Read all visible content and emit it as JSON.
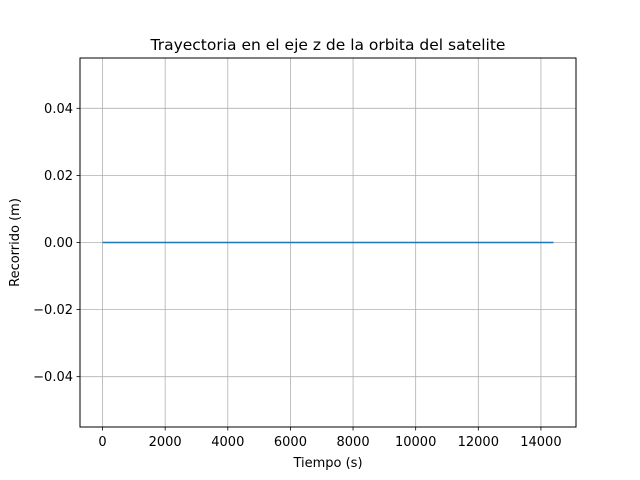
{
  "chart_data": {
    "type": "line",
    "title": "Trayectoria en el eje z de la orbita del satelite",
    "xlabel": "Tiempo (s)",
    "ylabel": "Recorrido (m)",
    "xlim": [
      -720,
      15120
    ],
    "ylim": [
      -0.055,
      0.055
    ],
    "xticks": [
      0,
      2000,
      4000,
      6000,
      8000,
      10000,
      12000,
      14000
    ],
    "xtick_labels": [
      "0",
      "2000",
      "4000",
      "6000",
      "8000",
      "10000",
      "12000",
      "14000"
    ],
    "yticks": [
      -0.04,
      -0.02,
      0.0,
      0.02,
      0.04
    ],
    "ytick_labels": [
      "−0.04",
      "−0.02",
      "0.00",
      "0.02",
      "0.04"
    ],
    "grid": true,
    "series": [
      {
        "x": [
          0,
          14400
        ],
        "y": [
          0,
          0
        ],
        "color": "#1f77b4"
      }
    ]
  }
}
